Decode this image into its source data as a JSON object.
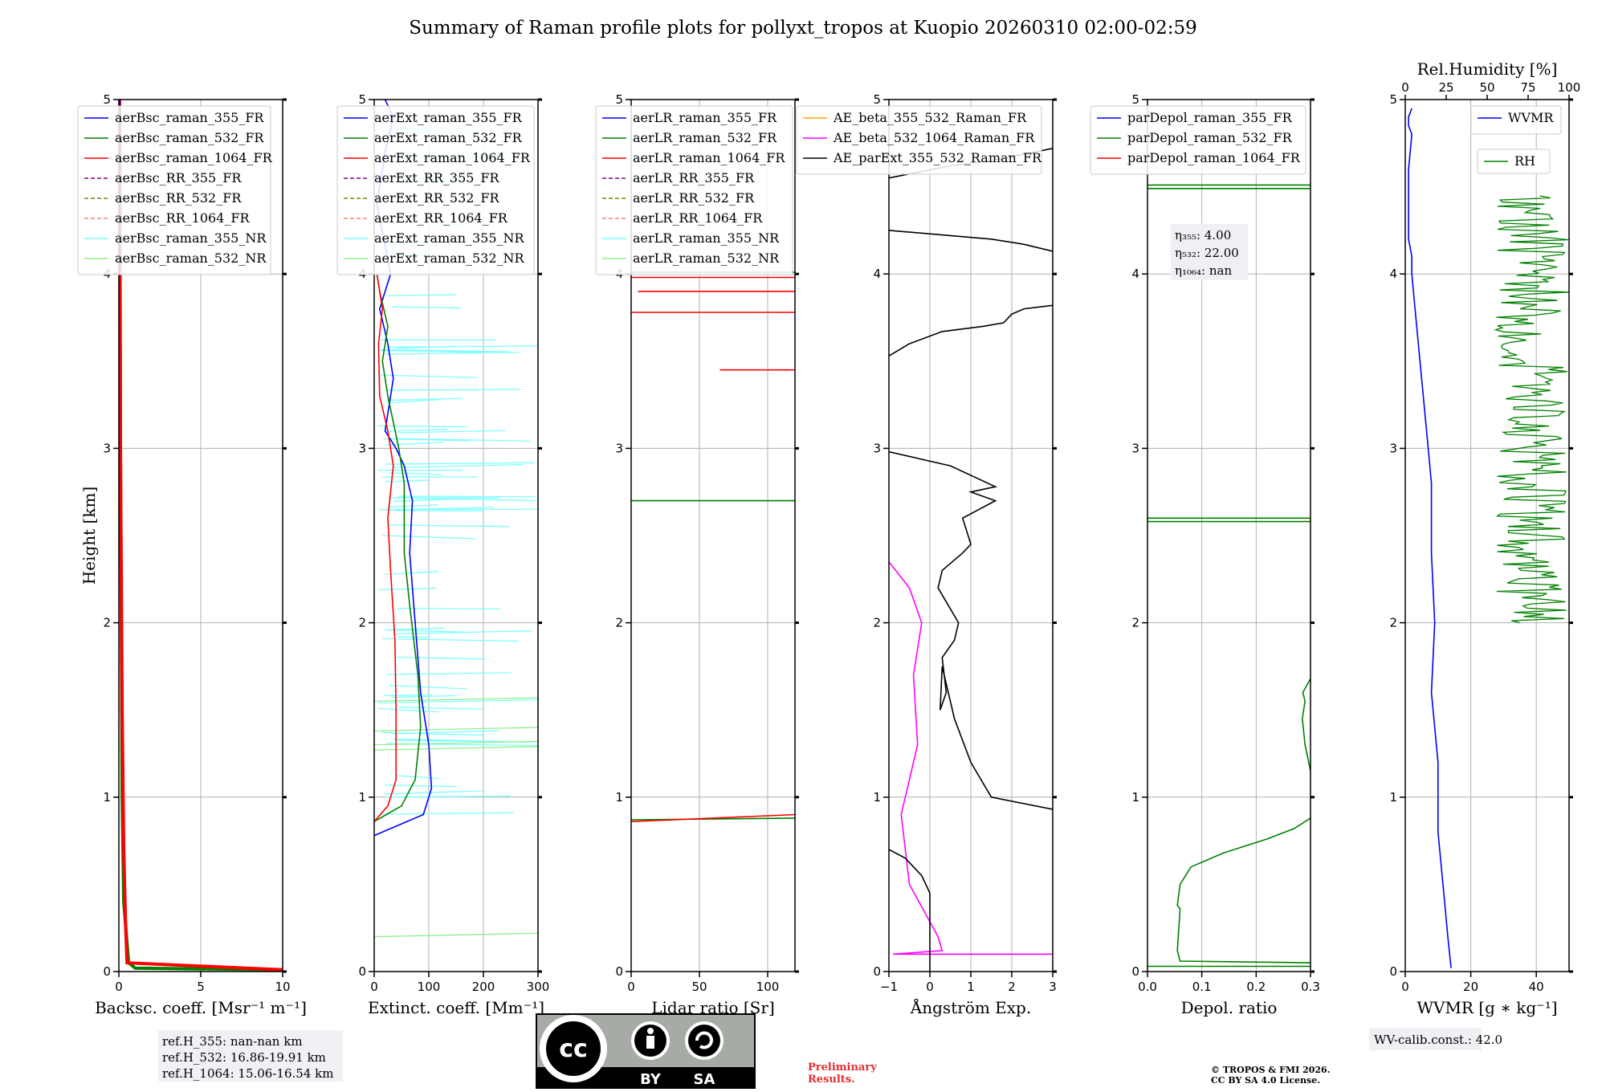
{
  "title": "Summary of Raman profile plots for pollyxt_tropos at Kuopio 20260310 02:00-02:59",
  "colors": {
    "blue": "#0000ff",
    "green": "#008000",
    "red": "#ff0000",
    "purple": "#800080",
    "olive": "#808000",
    "salmon": "#fa8072",
    "cyan": "#7fffff",
    "lightgreen": "#90ee90",
    "orange": "#ffa500",
    "magenta": "#ff00ff",
    "black": "#000000",
    "brown": "#a52a2a"
  },
  "chart_data": [
    {
      "id": "bsc",
      "type": "line",
      "xlabel": "Backsc. coeff. [Msr⁻¹ m⁻¹]",
      "ylabel": "Height [km]",
      "xlim": [
        0,
        10
      ],
      "ylim": [
        0,
        5
      ],
      "xticks": [
        "0",
        "5",
        "10"
      ],
      "xtickvals": [
        0,
        5,
        10
      ],
      "yticks": [
        "0",
        "1",
        "2",
        "3",
        "4",
        "5"
      ],
      "legend": [
        {
          "label": "aerBsc_raman_355_FR",
          "color": "#0000ff",
          "dash": false
        },
        {
          "label": "aerBsc_raman_532_FR",
          "color": "#008000",
          "dash": false
        },
        {
          "label": "aerBsc_raman_1064_FR",
          "color": "#ff0000",
          "dash": false
        },
        {
          "label": "aerBsc_RR_355_FR",
          "color": "#800080",
          "dash": true
        },
        {
          "label": "aerBsc_RR_532_FR",
          "color": "#808000",
          "dash": true
        },
        {
          "label": "aerBsc_RR_1064_FR",
          "color": "#fa8072",
          "dash": true
        },
        {
          "label": "aerBsc_raman_355_NR",
          "color": "#7fffff",
          "dash": false
        },
        {
          "label": "aerBsc_raman_532_NR",
          "color": "#90ee90",
          "dash": false
        }
      ],
      "series": [
        {
          "name": "aerBsc_raman_532_FR",
          "color": "#008000",
          "x": [
            10,
            1.0,
            0.6,
            0.3,
            0.2,
            0.1,
            0.05
          ],
          "y": [
            0.01,
            0.02,
            0.05,
            0.4,
            1.0,
            3.0,
            5.0
          ]
        },
        {
          "name": "aerBsc_raman_1064_FR",
          "color": "#ff0000",
          "x": [
            10,
            0.5,
            0.4,
            0.3,
            0.2,
            0.1,
            0.05
          ],
          "y": [
            0.01,
            0.05,
            0.3,
            0.7,
            1.5,
            3.0,
            5.0
          ]
        },
        {
          "name": "aerBsc_raman_355_FR",
          "color": "#0000ff",
          "x": [
            0.05,
            0.05
          ],
          "y": [
            4.0,
            5.0
          ]
        }
      ],
      "annotation": [
        "ref.H_355: nan-nan km",
        "ref.H_532: 16.86-19.91 km",
        "ref.H_1064: 15.06-16.54 km"
      ]
    },
    {
      "id": "ext",
      "type": "line",
      "xlabel": "Extinct. coeff. [Mm⁻¹]",
      "xlim": [
        0,
        300
      ],
      "ylim": [
        0,
        5
      ],
      "xticks": [
        "0",
        "100",
        "200",
        "300"
      ],
      "xtickvals": [
        0,
        100,
        200,
        300
      ],
      "yticks": [
        "0",
        "1",
        "2",
        "3",
        "4",
        "5"
      ],
      "legend": [
        {
          "label": "aerExt_raman_355_FR",
          "color": "#0000ff",
          "dash": false
        },
        {
          "label": "aerExt_raman_532_FR",
          "color": "#008000",
          "dash": false
        },
        {
          "label": "aerExt_raman_1064_FR",
          "color": "#ff0000",
          "dash": false
        },
        {
          "label": "aerExt_RR_355_FR",
          "color": "#800080",
          "dash": true
        },
        {
          "label": "aerExt_RR_532_FR",
          "color": "#808000",
          "dash": true
        },
        {
          "label": "aerExt_RR_1064_FR",
          "color": "#fa8072",
          "dash": true
        },
        {
          "label": "aerExt_raman_355_NR",
          "color": "#7fffff",
          "dash": false
        },
        {
          "label": "aerExt_raman_532_NR",
          "color": "#90ee90",
          "dash": false
        }
      ],
      "series": [
        {
          "name": "aerExt_raman_355_FR",
          "color": "#0000ff",
          "x": [
            0,
            90,
            105,
            100,
            85,
            75,
            65,
            70,
            55,
            40,
            20,
            35,
            25,
            10,
            30,
            5,
            20,
            35,
            20
          ],
          "y": [
            0.78,
            0.9,
            1.05,
            1.3,
            1.6,
            2.0,
            2.4,
            2.7,
            2.9,
            3.0,
            3.1,
            3.4,
            3.6,
            3.8,
            4.0,
            4.4,
            4.7,
            4.9,
            5.0
          ]
        },
        {
          "name": "aerExt_raman_532_FR",
          "color": "#008000",
          "x": [
            0,
            50,
            75,
            85,
            80,
            65,
            55,
            55,
            45,
            25,
            15,
            25,
            10,
            5
          ],
          "y": [
            0.86,
            0.95,
            1.1,
            1.4,
            1.7,
            2.1,
            2.4,
            2.8,
            3.0,
            3.3,
            3.5,
            3.7,
            3.9,
            4.0
          ]
        },
        {
          "name": "aerExt_raman_1064_FR",
          "color": "#ff0000",
          "x": [
            0,
            25,
            40,
            40,
            38,
            30,
            25,
            35,
            25,
            10,
            8,
            15,
            5
          ],
          "y": [
            0.86,
            0.95,
            1.1,
            1.5,
            1.9,
            2.3,
            2.6,
            2.9,
            3.1,
            3.3,
            3.6,
            3.8,
            4.0
          ]
        }
      ]
    },
    {
      "id": "lr",
      "type": "line",
      "xlabel": "Lidar ratio [Sr]",
      "xlim": [
        0,
        120
      ],
      "ylim": [
        0,
        5
      ],
      "xticks": [
        "0",
        "50",
        "100"
      ],
      "xtickvals": [
        0,
        50,
        100
      ],
      "yticks": [
        "0",
        "1",
        "2",
        "3",
        "4",
        "5"
      ],
      "legend": [
        {
          "label": "aerLR_raman_355_FR",
          "color": "#0000ff",
          "dash": false
        },
        {
          "label": "aerLR_raman_532_FR",
          "color": "#008000",
          "dash": false
        },
        {
          "label": "aerLR_raman_1064_FR",
          "color": "#ff0000",
          "dash": false
        },
        {
          "label": "aerLR_RR_355_FR",
          "color": "#800080",
          "dash": true
        },
        {
          "label": "aerLR_RR_532_FR",
          "color": "#808000",
          "dash": true
        },
        {
          "label": "aerLR_RR_1064_FR",
          "color": "#fa8072",
          "dash": true
        },
        {
          "label": "aerLR_raman_355_NR",
          "color": "#7fffff",
          "dash": false
        },
        {
          "label": "aerLR_raman_532_NR",
          "color": "#90ee90",
          "dash": false
        }
      ],
      "series": [
        {
          "name": "aerLR_raman_532_FR",
          "color": "#008000",
          "x": [
            0,
            120
          ],
          "y": [
            0.87,
            0.88
          ]
        },
        {
          "name": "aerLR_raman_1064_FR",
          "color": "#ff0000",
          "x": [
            0,
            120
          ],
          "y": [
            0.86,
            0.9
          ]
        },
        {
          "name": "aerLR_raman_532_FR b",
          "color": "#008000",
          "x": [
            0,
            120
          ],
          "y": [
            2.7,
            2.7
          ]
        },
        {
          "name": "aerLR_raman_1064_FR c",
          "color": "#ff0000",
          "x": [
            65,
            120
          ],
          "y": [
            3.45,
            3.45
          ]
        },
        {
          "name": "aerLR_raman_1064_FR d",
          "color": "#ff0000",
          "x": [
            0,
            120
          ],
          "y": [
            3.78,
            3.78
          ]
        },
        {
          "name": "aerLR_raman_1064_FR e",
          "color": "#ff0000",
          "x": [
            5,
            120
          ],
          "y": [
            3.9,
            3.9
          ]
        },
        {
          "name": "aerLR_raman_1064_FR f",
          "color": "#ff0000",
          "x": [
            0,
            120
          ],
          "y": [
            3.98,
            3.98
          ]
        },
        {
          "name": "aerLR_raman_532_FR g",
          "color": "#008000",
          "x": [
            0,
            120
          ],
          "y": [
            4.01,
            4.01
          ]
        }
      ]
    },
    {
      "id": "ae",
      "type": "line",
      "xlabel": "Ångström Exp.",
      "xlim": [
        -1,
        3
      ],
      "ylim": [
        0,
        5
      ],
      "xticks": [
        "−1",
        "0",
        "1",
        "2",
        "3"
      ],
      "xtickvals": [
        -1,
        0,
        1,
        2,
        3
      ],
      "yticks": [
        "0",
        "1",
        "2",
        "3",
        "4",
        "5"
      ],
      "legend": [
        {
          "label": "AE_beta_355_532_Raman_FR",
          "color": "#ffa500",
          "dash": false
        },
        {
          "label": "AE_beta_532_1064_Raman_FR",
          "color": "#ff00ff",
          "dash": false
        },
        {
          "label": "AE_parExt_355_532_Raman_FR",
          "color": "#000000",
          "dash": false
        }
      ],
      "series": [
        {
          "name": "AE_beta_532_1064_Raman_FR",
          "color": "#ff00ff",
          "x": [
            3,
            -0.9,
            0.3,
            0.2,
            -0.5,
            -0.7,
            -0.3,
            -0.4,
            -0.2,
            -0.5,
            -1.0
          ],
          "y": [
            0.1,
            0.1,
            0.12,
            0.2,
            0.5,
            0.9,
            1.3,
            1.7,
            2.0,
            2.2,
            2.35
          ]
        },
        {
          "name": "AE_parExt_355_532_Raman_FR",
          "color": "#000000",
          "x": [
            0,
            0,
            -0.2,
            -0.6,
            -1.0
          ],
          "y": [
            0,
            0.45,
            0.55,
            0.65,
            0.7
          ]
        },
        {
          "name": "AE_parExt_355_532_Raman_FR b",
          "color": "#000000",
          "x": [
            3,
            1.5,
            1.0,
            0.6,
            0.3,
            0.25,
            0.4,
            0.3,
            0.6,
            0.7,
            0.2,
            0.3,
            0.8,
            1.0,
            0.8,
            1.6,
            1.0,
            1.6,
            0.5,
            -1.0
          ],
          "y": [
            0.93,
            1.0,
            1.2,
            1.45,
            1.75,
            1.5,
            1.6,
            1.8,
            1.9,
            2.0,
            2.2,
            2.3,
            2.4,
            2.45,
            2.6,
            2.7,
            2.75,
            2.78,
            2.9,
            2.98
          ]
        },
        {
          "name": "AE_parExt_355_532_Raman_FR c",
          "color": "#000000",
          "x": [
            -1.0,
            -0.5,
            0.3,
            1.3,
            1.8,
            2.0,
            2.3,
            3.0
          ],
          "y": [
            3.53,
            3.6,
            3.67,
            3.7,
            3.72,
            3.77,
            3.8,
            3.82
          ]
        },
        {
          "name": "AE_parExt_355_532_Raman_FR d",
          "color": "#000000",
          "x": [
            -1.0,
            0.5,
            1.5,
            2.3,
            3.0
          ],
          "y": [
            4.25,
            4.22,
            4.2,
            4.17,
            4.13
          ]
        },
        {
          "name": "AE_parExt_355_532_Raman_FR e",
          "color": "#000000",
          "x": [
            -1.0,
            0.5,
            1.5,
            3.0
          ],
          "y": [
            4.55,
            4.62,
            4.65,
            4.72
          ]
        }
      ]
    },
    {
      "id": "dep",
      "type": "line",
      "xlabel": "Depol. ratio",
      "xlim": [
        0,
        0.3
      ],
      "ylim": [
        0,
        5
      ],
      "xticks": [
        "0.0",
        "0.1",
        "0.2",
        "0.3"
      ],
      "xtickvals": [
        0,
        0.1,
        0.2,
        0.3
      ],
      "yticks": [
        "0",
        "1",
        "2",
        "3",
        "4",
        "5"
      ],
      "legend": [
        {
          "label": "parDepol_raman_355_FR",
          "color": "#0000ff",
          "dash": false
        },
        {
          "label": "parDepol_raman_532_FR",
          "color": "#008000",
          "dash": false
        },
        {
          "label": "parDepol_raman_1064_FR",
          "color": "#ff0000",
          "dash": false
        }
      ],
      "series": [
        {
          "name": "parDepol_raman_532_FR",
          "color": "#008000",
          "x": [
            0.3,
            0.06,
            0.055,
            0.06,
            0.055,
            0.06,
            0.08,
            0.14,
            0.22,
            0.27,
            0.3
          ],
          "y": [
            0.05,
            0.06,
            0.12,
            0.36,
            0.38,
            0.5,
            0.6,
            0.68,
            0.76,
            0.82,
            0.88
          ]
        },
        {
          "name": "parDepol_raman_532_FR b",
          "color": "#008000",
          "x": [
            0.3,
            0.29,
            0.285,
            0.29,
            0.286,
            0.3
          ],
          "y": [
            1.15,
            1.3,
            1.45,
            1.55,
            1.6,
            1.68
          ]
        },
        {
          "name": "parDepol_raman_532_FR c",
          "color": "#008000",
          "x": [
            0,
            0.3
          ],
          "y": [
            0.03,
            0.03
          ]
        },
        {
          "name": "parDepol_raman_532_FR d",
          "color": "#008000",
          "x": [
            0,
            0.3
          ],
          "y": [
            2.58,
            2.58
          ]
        },
        {
          "name": "parDepol_raman_532_FR e",
          "color": "#008000",
          "x": [
            0,
            0.3
          ],
          "y": [
            2.6,
            2.6
          ]
        },
        {
          "name": "parDepol_raman_532_FR f",
          "color": "#008000",
          "x": [
            0,
            0.3
          ],
          "y": [
            4.49,
            4.49
          ]
        },
        {
          "name": "parDepol_raman_532_FR g",
          "color": "#008000",
          "x": [
            0,
            0.3
          ],
          "y": [
            4.51,
            4.51
          ]
        }
      ],
      "annotation": [
        "η₃₅₅: 4.00",
        "η₅₃₂: 22.00",
        "η₁₀₆₄: nan"
      ]
    },
    {
      "id": "wv",
      "type": "line",
      "xlabel": "WVMR [g ∗ kg⁻¹]",
      "x2label": "Rel.Humidity [%]",
      "xlim": [
        0,
        50
      ],
      "x2lim": [
        0,
        100
      ],
      "ylim": [
        0,
        5
      ],
      "xticks": [
        "0",
        "20",
        "40"
      ],
      "xtickvals": [
        0,
        20,
        40
      ],
      "x2ticks": [
        "0",
        "25",
        "50",
        "75",
        "100"
      ],
      "x2tickvals": [
        0,
        25,
        50,
        75,
        100
      ],
      "yticks": [
        "0",
        "1",
        "2",
        "3",
        "4",
        "5"
      ],
      "legend": [
        {
          "label": "WVMR",
          "color": "#0000ff",
          "dash": false
        }
      ],
      "legend2": [
        {
          "label": "RH",
          "color": "#008000",
          "dash": false
        }
      ],
      "series": [
        {
          "name": "WVMR",
          "color": "#0000ff",
          "x": [
            14,
            13,
            12,
            10,
            10,
            8,
            9,
            8,
            8,
            7,
            6,
            5,
            4,
            3,
            2,
            2,
            1,
            1,
            1,
            1,
            1,
            2,
            1,
            1,
            2
          ],
          "y": [
            0.02,
            0.2,
            0.4,
            0.8,
            1.2,
            1.6,
            2.0,
            2.4,
            2.8,
            3.0,
            3.2,
            3.4,
            3.6,
            3.8,
            4.0,
            4.1,
            4.2,
            4.3,
            4.4,
            4.5,
            4.6,
            4.8,
            4.85,
            4.9,
            4.95
          ]
        }
      ],
      "annotation": "WV-calib.const.: 42.0"
    }
  ],
  "footer": {
    "cc_badge": {
      "by": "BY",
      "sa": "SA",
      "cc": "cc"
    },
    "preliminary": [
      "Preliminary",
      "Results."
    ],
    "copyright": [
      "© TROPOS & FMI 2026.",
      "CC BY SA 4.0 License."
    ]
  }
}
